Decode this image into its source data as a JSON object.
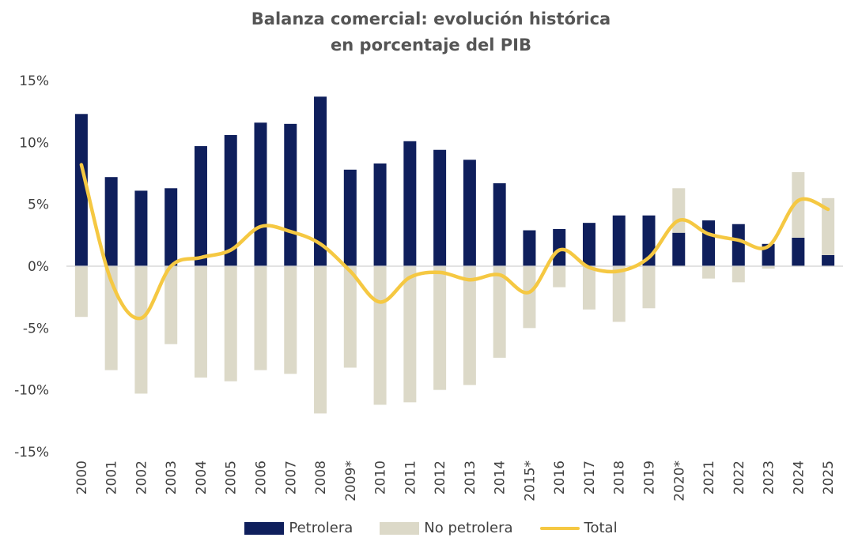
{
  "chart_data": {
    "type": "bar",
    "title_line1": "Balanza comercial: evolución histórica",
    "title_line2": "en porcentaje del PIB",
    "categories": [
      "2000",
      "2001",
      "2002",
      "2003",
      "2004",
      "2005",
      "2006",
      "2007",
      "2008",
      "2009*",
      "2010",
      "2011",
      "2012",
      "2013",
      "2014",
      "2015*",
      "2016",
      "2017",
      "2018",
      "2019",
      "2020*",
      "2021",
      "2022",
      "2023",
      "2024",
      "2025"
    ],
    "series": [
      {
        "name": "Petrolera",
        "type": "bar",
        "color": "#0f1f5c",
        "values": [
          12.3,
          7.2,
          6.1,
          6.3,
          9.7,
          10.6,
          11.6,
          11.5,
          13.7,
          7.8,
          8.3,
          10.1,
          9.4,
          8.6,
          6.7,
          2.9,
          3.0,
          3.5,
          4.1,
          4.1,
          2.7,
          3.7,
          3.4,
          1.8,
          2.3,
          0.9
        ]
      },
      {
        "name": "No petrolera",
        "type": "bar",
        "color": "#dcd9c8",
        "values": [
          -4.1,
          -8.4,
          -10.3,
          -6.3,
          -9.0,
          -9.3,
          -8.4,
          -8.7,
          -11.9,
          -8.2,
          -11.2,
          -11.0,
          -10.0,
          -9.6,
          -7.4,
          -5.0,
          -1.7,
          -3.5,
          -4.5,
          -3.4,
          3.6,
          -1.0,
          -1.3,
          -0.2,
          5.3,
          4.6
        ]
      },
      {
        "name": "Total",
        "type": "line",
        "color": "#f5c842",
        "values": [
          8.2,
          -1.2,
          -4.2,
          0.0,
          0.7,
          1.3,
          3.2,
          2.8,
          1.8,
          -0.4,
          -2.9,
          -0.9,
          -0.5,
          -1.1,
          -0.7,
          -2.1,
          1.3,
          -0.1,
          -0.4,
          0.7,
          3.7,
          2.6,
          2.1,
          1.6,
          5.3,
          4.6
        ]
      }
    ],
    "ylim": [
      -15,
      15
    ],
    "yticks": [
      -15,
      -10,
      -5,
      0,
      5,
      10,
      15
    ],
    "ytick_labels": [
      "-15%",
      "-10%",
      "-5%",
      "0%",
      "5%",
      "10%",
      "15%"
    ],
    "legend_position": "bottom",
    "grid": false
  }
}
